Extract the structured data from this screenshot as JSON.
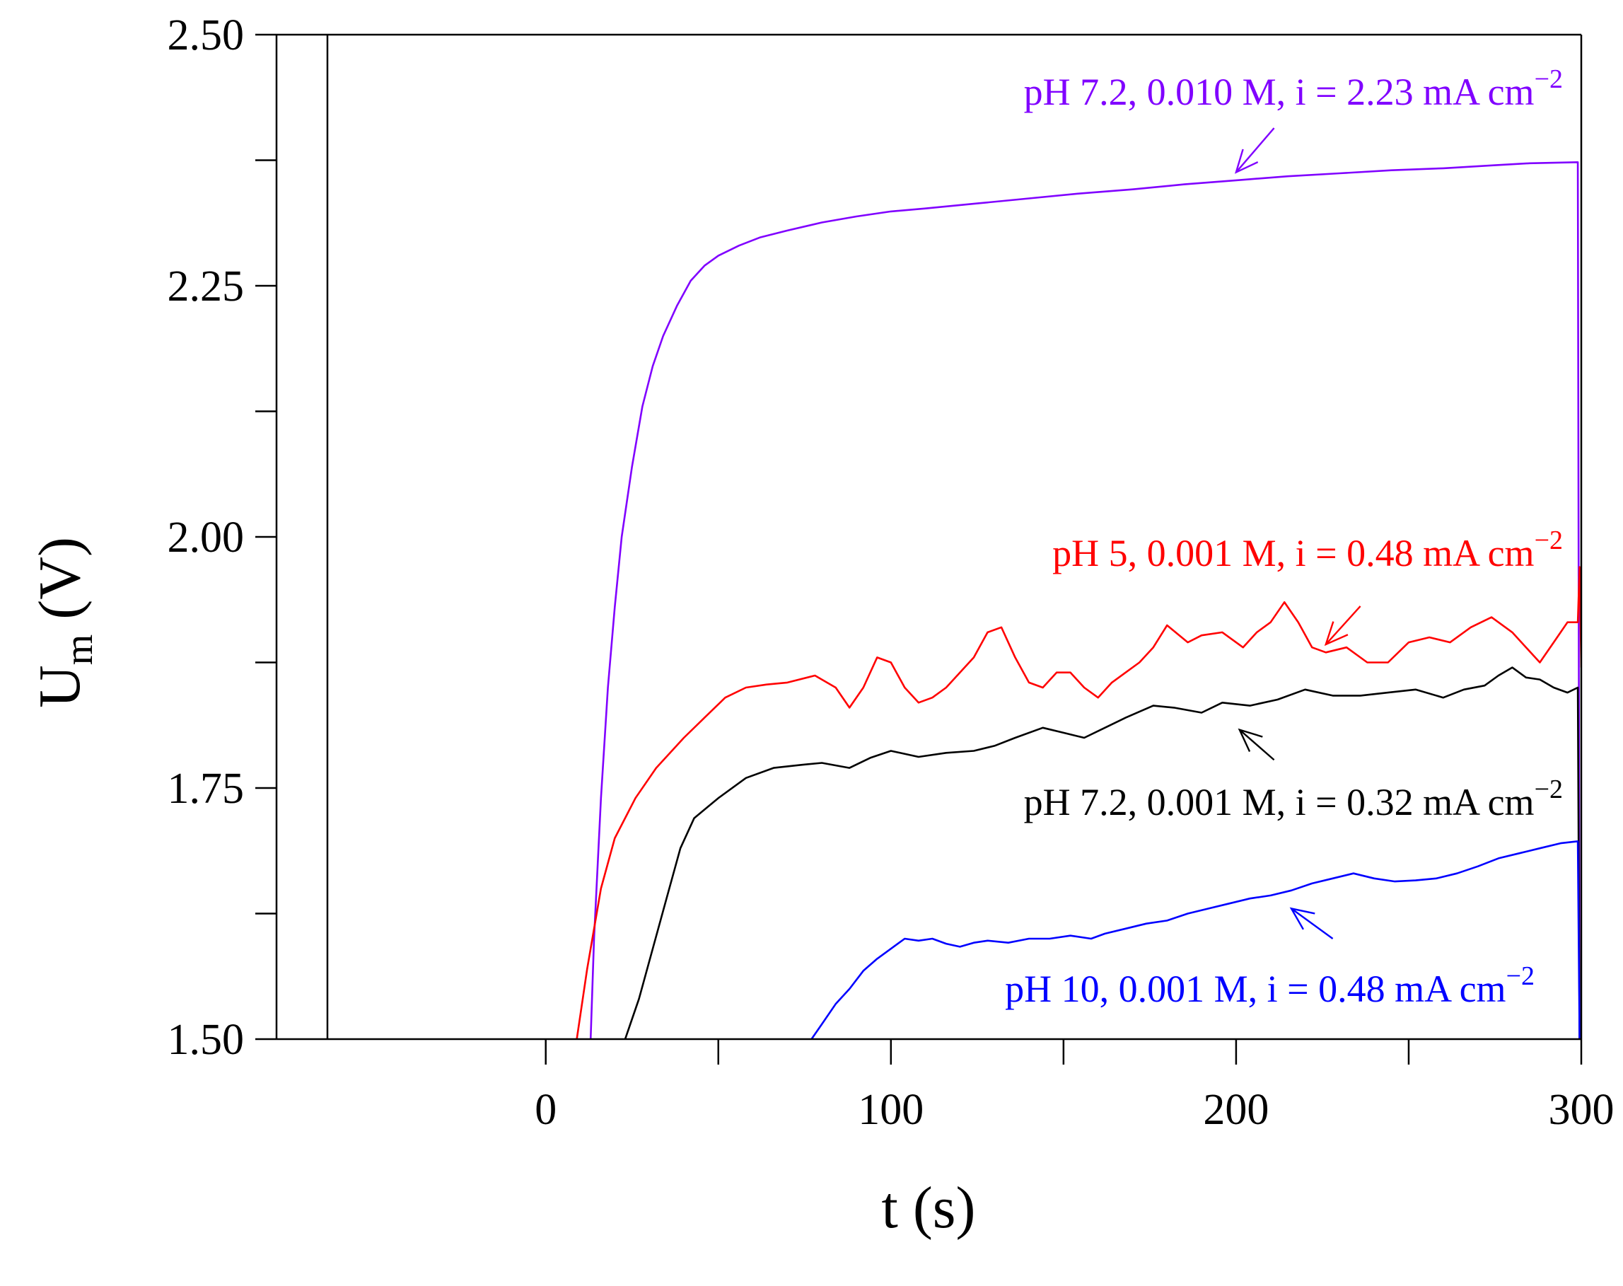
{
  "chart_data": {
    "type": "line",
    "xlabel": "t (s)",
    "ylabel_main": "U",
    "ylabel_sub": "m",
    "ylabel_unit": " (V)",
    "xlim": [
      -78,
      300
    ],
    "ylim": [
      1.5,
      2.5
    ],
    "x_ticks": [
      0,
      50,
      100,
      150,
      200,
      250,
      300
    ],
    "x_tick_labels": [
      "0",
      "",
      "100",
      "",
      "200",
      "",
      "300"
    ],
    "y_ticks": [
      1.5,
      1.625,
      1.75,
      1.875,
      2.0,
      2.125,
      2.25,
      2.375,
      2.5
    ],
    "y_tick_labels": [
      "1.50",
      "",
      "1.75",
      "",
      "2.00",
      "",
      "2.25",
      "",
      "2.50"
    ],
    "series": [
      {
        "name": "pH 7.2, 0.010 M, i = 2.23 mA cm",
        "superscript": "−2",
        "color": "#8000ff",
        "points": [
          [
            13,
            1.5
          ],
          [
            14,
            1.6
          ],
          [
            16,
            1.74
          ],
          [
            18,
            1.85
          ],
          [
            20,
            1.93
          ],
          [
            22,
            2.0
          ],
          [
            25,
            2.07
          ],
          [
            28,
            2.13
          ],
          [
            31,
            2.17
          ],
          [
            34,
            2.2
          ],
          [
            38,
            2.23
          ],
          [
            42,
            2.255
          ],
          [
            46,
            2.27
          ],
          [
            50,
            2.28
          ],
          [
            56,
            2.29
          ],
          [
            62,
            2.298
          ],
          [
            70,
            2.305
          ],
          [
            80,
            2.313
          ],
          [
            90,
            2.319
          ],
          [
            100,
            2.324
          ],
          [
            110,
            2.327
          ],
          [
            125,
            2.332
          ],
          [
            140,
            2.337
          ],
          [
            155,
            2.342
          ],
          [
            170,
            2.346
          ],
          [
            185,
            2.351
          ],
          [
            200,
            2.355
          ],
          [
            215,
            2.359
          ],
          [
            230,
            2.362
          ],
          [
            245,
            2.365
          ],
          [
            260,
            2.367
          ],
          [
            275,
            2.37
          ],
          [
            285,
            2.372
          ],
          [
            299,
            2.373
          ],
          [
            299.5,
            1.5
          ]
        ],
        "annotation_lines": [
          "pH 7.2, 0.010 M, i = 2.23 mA cm"
        ],
        "arrow_from": [
          211,
          2.407
        ],
        "arrow_to": [
          200,
          2.363
        ]
      },
      {
        "name": "pH 5, 0.001 M, i = 0.48 mA cm",
        "superscript": "−2",
        "color": "#ff0000",
        "points": [
          [
            9,
            1.5
          ],
          [
            12,
            1.57
          ],
          [
            16,
            1.65
          ],
          [
            20,
            1.7
          ],
          [
            26,
            1.74
          ],
          [
            32,
            1.77
          ],
          [
            40,
            1.8
          ],
          [
            46,
            1.82
          ],
          [
            52,
            1.84
          ],
          [
            58,
            1.85
          ],
          [
            64,
            1.853
          ],
          [
            70,
            1.855
          ],
          [
            78,
            1.862
          ],
          [
            84,
            1.85
          ],
          [
            88,
            1.83
          ],
          [
            92,
            1.85
          ],
          [
            96,
            1.88
          ],
          [
            100,
            1.875
          ],
          [
            104,
            1.85
          ],
          [
            108,
            1.835
          ],
          [
            112,
            1.84
          ],
          [
            116,
            1.85
          ],
          [
            120,
            1.865
          ],
          [
            124,
            1.88
          ],
          [
            128,
            1.905
          ],
          [
            132,
            1.91
          ],
          [
            136,
            1.88
          ],
          [
            140,
            1.855
          ],
          [
            144,
            1.85
          ],
          [
            148,
            1.865
          ],
          [
            152,
            1.865
          ],
          [
            156,
            1.85
          ],
          [
            160,
            1.84
          ],
          [
            164,
            1.855
          ],
          [
            168,
            1.865
          ],
          [
            172,
            1.875
          ],
          [
            176,
            1.89
          ],
          [
            180,
            1.912
          ],
          [
            186,
            1.895
          ],
          [
            190,
            1.902
          ],
          [
            196,
            1.905
          ],
          [
            202,
            1.89
          ],
          [
            206,
            1.905
          ],
          [
            210,
            1.915
          ],
          [
            214,
            1.935
          ],
          [
            218,
            1.915
          ],
          [
            222,
            1.89
          ],
          [
            226,
            1.885
          ],
          [
            232,
            1.89
          ],
          [
            238,
            1.875
          ],
          [
            244,
            1.875
          ],
          [
            250,
            1.895
          ],
          [
            256,
            1.9
          ],
          [
            262,
            1.895
          ],
          [
            268,
            1.91
          ],
          [
            274,
            1.92
          ],
          [
            280,
            1.905
          ],
          [
            284,
            1.89
          ],
          [
            288,
            1.875
          ],
          [
            292,
            1.895
          ],
          [
            296,
            1.915
          ],
          [
            299,
            1.915
          ],
          [
            299.5,
            1.97
          ],
          [
            300,
            1.87
          ]
        ],
        "annotation_lines": [
          "pH 5, 0.001 M, i = 0.48 mA cm"
        ],
        "arrow_from": [
          236,
          1.931
        ],
        "arrow_to": [
          226,
          1.893
        ]
      },
      {
        "name": "pH 7.2, 0.001 M, i = 0.32 mA cm",
        "superscript": "−2",
        "color": "#000000",
        "points": [
          [
            23,
            1.5
          ],
          [
            27,
            1.54
          ],
          [
            31,
            1.59
          ],
          [
            35,
            1.64
          ],
          [
            39,
            1.69
          ],
          [
            43,
            1.72
          ],
          [
            50,
            1.74
          ],
          [
            58,
            1.76
          ],
          [
            66,
            1.77
          ],
          [
            74,
            1.773
          ],
          [
            80,
            1.775
          ],
          [
            88,
            1.77
          ],
          [
            94,
            1.78
          ],
          [
            100,
            1.787
          ],
          [
            108,
            1.781
          ],
          [
            116,
            1.785
          ],
          [
            124,
            1.787
          ],
          [
            130,
            1.792
          ],
          [
            136,
            1.8
          ],
          [
            144,
            1.81
          ],
          [
            150,
            1.805
          ],
          [
            156,
            1.8
          ],
          [
            162,
            1.81
          ],
          [
            168,
            1.82
          ],
          [
            176,
            1.832
          ],
          [
            182,
            1.83
          ],
          [
            190,
            1.825
          ],
          [
            196,
            1.835
          ],
          [
            204,
            1.832
          ],
          [
            212,
            1.838
          ],
          [
            220,
            1.848
          ],
          [
            228,
            1.842
          ],
          [
            236,
            1.842
          ],
          [
            244,
            1.845
          ],
          [
            252,
            1.848
          ],
          [
            260,
            1.84
          ],
          [
            266,
            1.848
          ],
          [
            272,
            1.852
          ],
          [
            276,
            1.862
          ],
          [
            280,
            1.87
          ],
          [
            284,
            1.86
          ],
          [
            288,
            1.858
          ],
          [
            292,
            1.85
          ],
          [
            296,
            1.845
          ],
          [
            299,
            1.85
          ],
          [
            299.5,
            1.5
          ]
        ],
        "annotation_lines": [
          "pH 7.2, 0.001 M, i = 0.32 mA cm"
        ],
        "arrow_from": [
          211,
          1.778
        ],
        "arrow_to": [
          201,
          1.808
        ]
      },
      {
        "name": "pH 10, 0.001 M, i = 0.48 mA cm",
        "superscript": "−2",
        "color": "#0000ff",
        "points": [
          [
            77,
            1.5
          ],
          [
            80,
            1.515
          ],
          [
            84,
            1.535
          ],
          [
            88,
            1.55
          ],
          [
            92,
            1.568
          ],
          [
            96,
            1.58
          ],
          [
            100,
            1.59
          ],
          [
            104,
            1.6
          ],
          [
            108,
            1.598
          ],
          [
            112,
            1.6
          ],
          [
            116,
            1.595
          ],
          [
            120,
            1.592
          ],
          [
            124,
            1.596
          ],
          [
            128,
            1.598
          ],
          [
            134,
            1.596
          ],
          [
            140,
            1.6
          ],
          [
            146,
            1.6
          ],
          [
            152,
            1.603
          ],
          [
            158,
            1.6
          ],
          [
            162,
            1.605
          ],
          [
            168,
            1.61
          ],
          [
            174,
            1.615
          ],
          [
            180,
            1.618
          ],
          [
            186,
            1.625
          ],
          [
            192,
            1.63
          ],
          [
            198,
            1.635
          ],
          [
            204,
            1.64
          ],
          [
            210,
            1.643
          ],
          [
            216,
            1.648
          ],
          [
            222,
            1.655
          ],
          [
            228,
            1.66
          ],
          [
            234,
            1.665
          ],
          [
            240,
            1.66
          ],
          [
            246,
            1.657
          ],
          [
            252,
            1.658
          ],
          [
            258,
            1.66
          ],
          [
            264,
            1.665
          ],
          [
            270,
            1.672
          ],
          [
            276,
            1.68
          ],
          [
            282,
            1.685
          ],
          [
            288,
            1.69
          ],
          [
            294,
            1.695
          ],
          [
            299,
            1.697
          ],
          [
            299.5,
            1.5
          ]
        ],
        "annotation_lines": [
          "pH 10, 0.001 M, i = 0.48 mA cm"
        ],
        "arrow_from": [
          228,
          1.6
        ],
        "arrow_to": [
          216,
          1.63
        ]
      }
    ]
  }
}
